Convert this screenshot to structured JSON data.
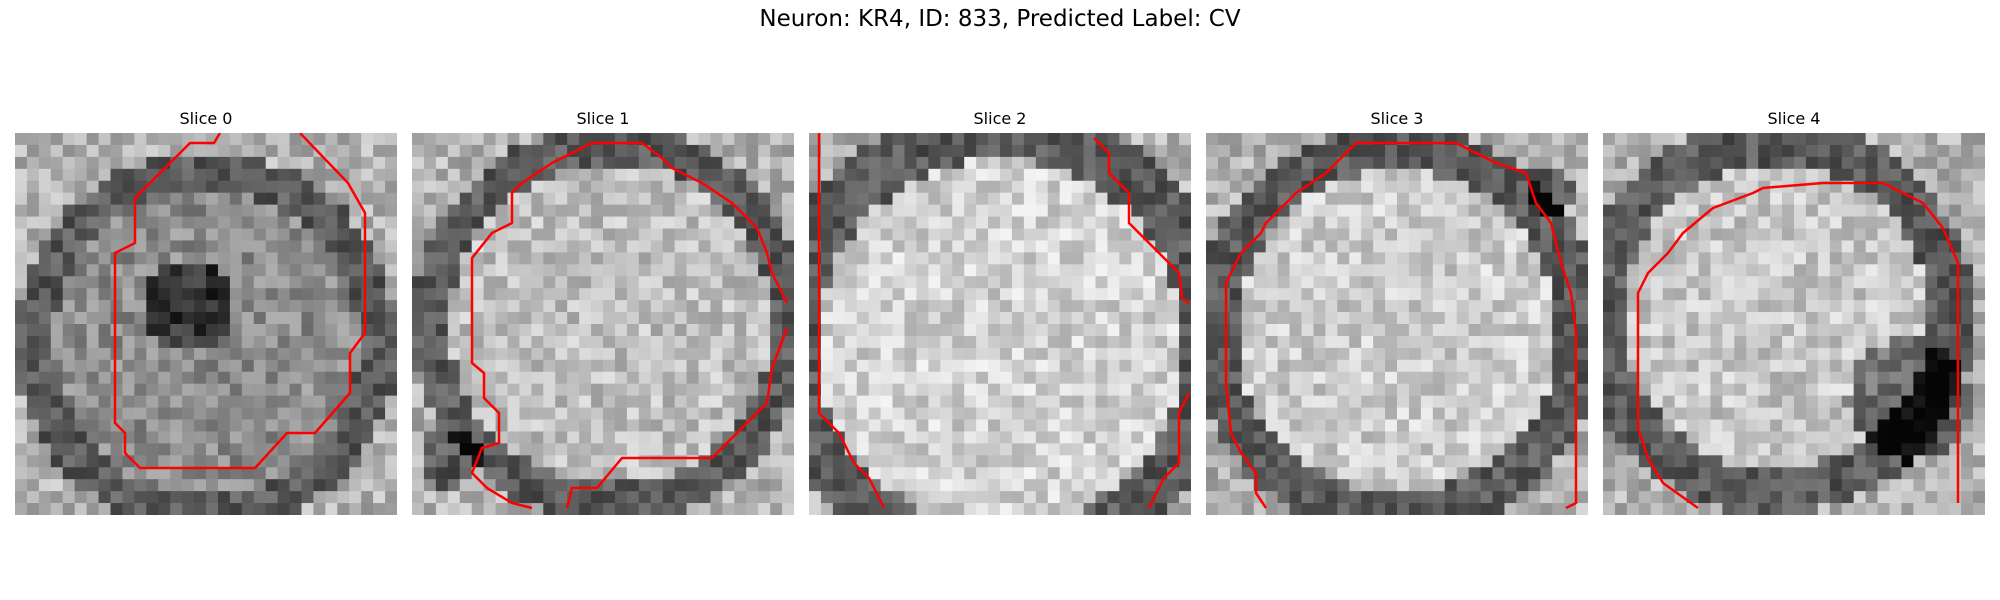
{
  "figure": {
    "title": "Neuron: KR4, ID: 833, Predicted Label: CV"
  },
  "panels": [
    {
      "title": "Slice 0"
    },
    {
      "title": "Slice 1"
    },
    {
      "title": "Slice 2"
    },
    {
      "title": "Slice 3"
    },
    {
      "title": "Slice 4"
    }
  ],
  "colors": {
    "contour": "#ff0000",
    "background": "#ffffff"
  }
}
